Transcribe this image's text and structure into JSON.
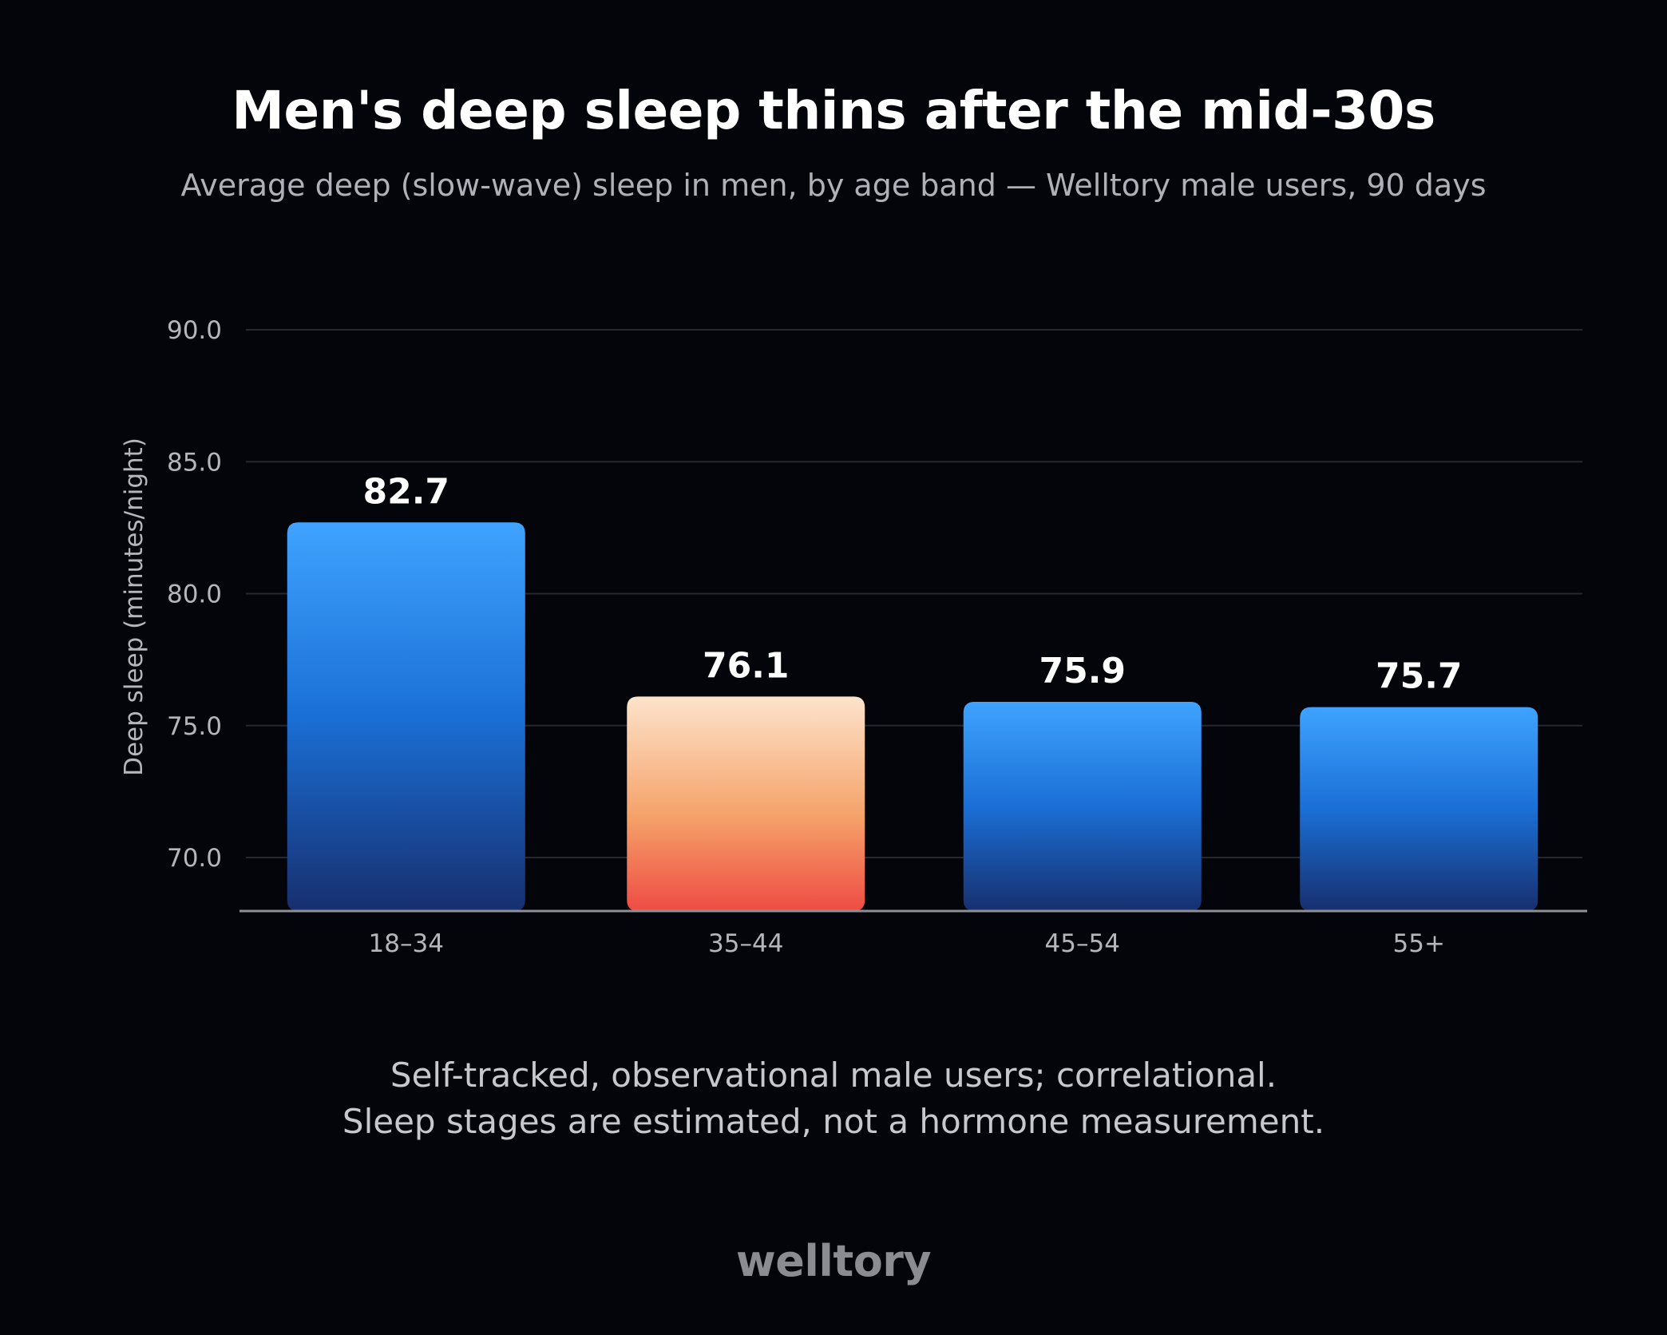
{
  "colors": {
    "background": "#04050a",
    "bar_default_top": "#3fa3ff",
    "bar_default_mid": "#1a6fd6",
    "bar_default_bottom": "#172f6e",
    "bar_highlight_top": "#fde3cc",
    "bar_highlight_mid": "#f5a36a",
    "bar_highlight_bottom": "#ef4c44",
    "gridline": "#262830",
    "axis": "#8e9096",
    "tick_text": "#b4b6bc",
    "value_label": "#ffffff"
  },
  "chart_data": {
    "type": "bar",
    "title": "Men's deep sleep thins after the mid-30s",
    "subtitle": "Average deep (slow-wave) sleep in men, by age band — Welltory male users, 90 days",
    "xlabel": "",
    "ylabel": "Deep sleep (minutes/night)",
    "categories": [
      "18–34",
      "35–44",
      "45–54",
      "55+"
    ],
    "values": [
      82.7,
      76.1,
      75.9,
      75.7
    ],
    "value_labels": [
      "82.7",
      "76.1",
      "75.9",
      "75.7"
    ],
    "highlight_index": 1,
    "ylim": [
      68.0,
      90.0
    ],
    "yticks": [
      70.0,
      75.0,
      80.0,
      85.0,
      90.0
    ],
    "ytick_labels": [
      "70.0",
      "75.0",
      "80.0",
      "85.0",
      "90.0"
    ],
    "grid": true,
    "legend": "none"
  },
  "footnote": {
    "line1": "Self-tracked, observational male users; correlational.",
    "line2": "Sleep stages are estimated, not a hormone measurement."
  },
  "brand": "welltory"
}
